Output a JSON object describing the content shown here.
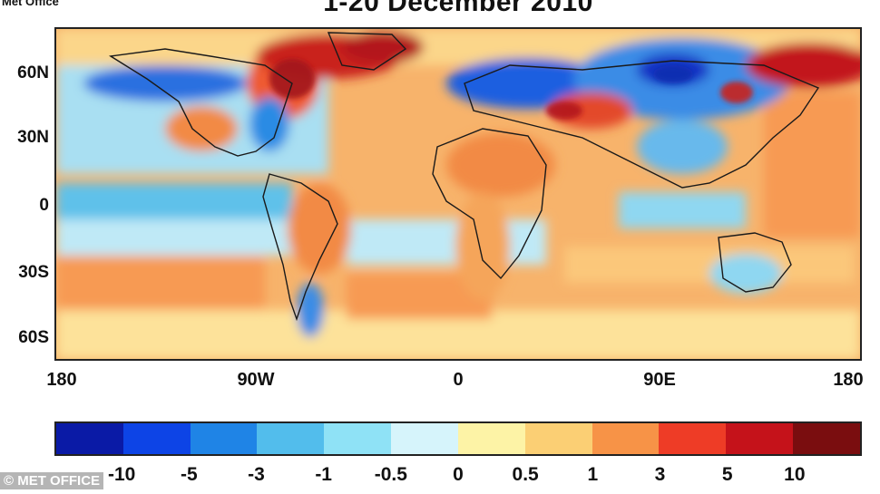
{
  "header": {
    "agency": "Met Office",
    "title": "1-20 December 2010"
  },
  "map": {
    "lat_labels": [
      "60N",
      "30N",
      "0",
      "30S",
      "60S"
    ],
    "lon_labels": [
      "180",
      "90W",
      "0",
      "90E",
      "180"
    ]
  },
  "legend": {
    "labels": [
      "-10",
      "-5",
      "-3",
      "-1",
      "-0.5",
      "0",
      "0.5",
      "1",
      "3",
      "5",
      "10"
    ],
    "colors": [
      "#0a1aa6",
      "#0d44e6",
      "#1f84e6",
      "#52bdec",
      "#8fe2f6",
      "#d6f4fb",
      "#fdf3a6",
      "#fbcf74",
      "#f79347",
      "#ee3c26",
      "#c5121a",
      "#7a0d0f"
    ]
  },
  "footer": {
    "watermark": "© MET OFFICE"
  }
}
